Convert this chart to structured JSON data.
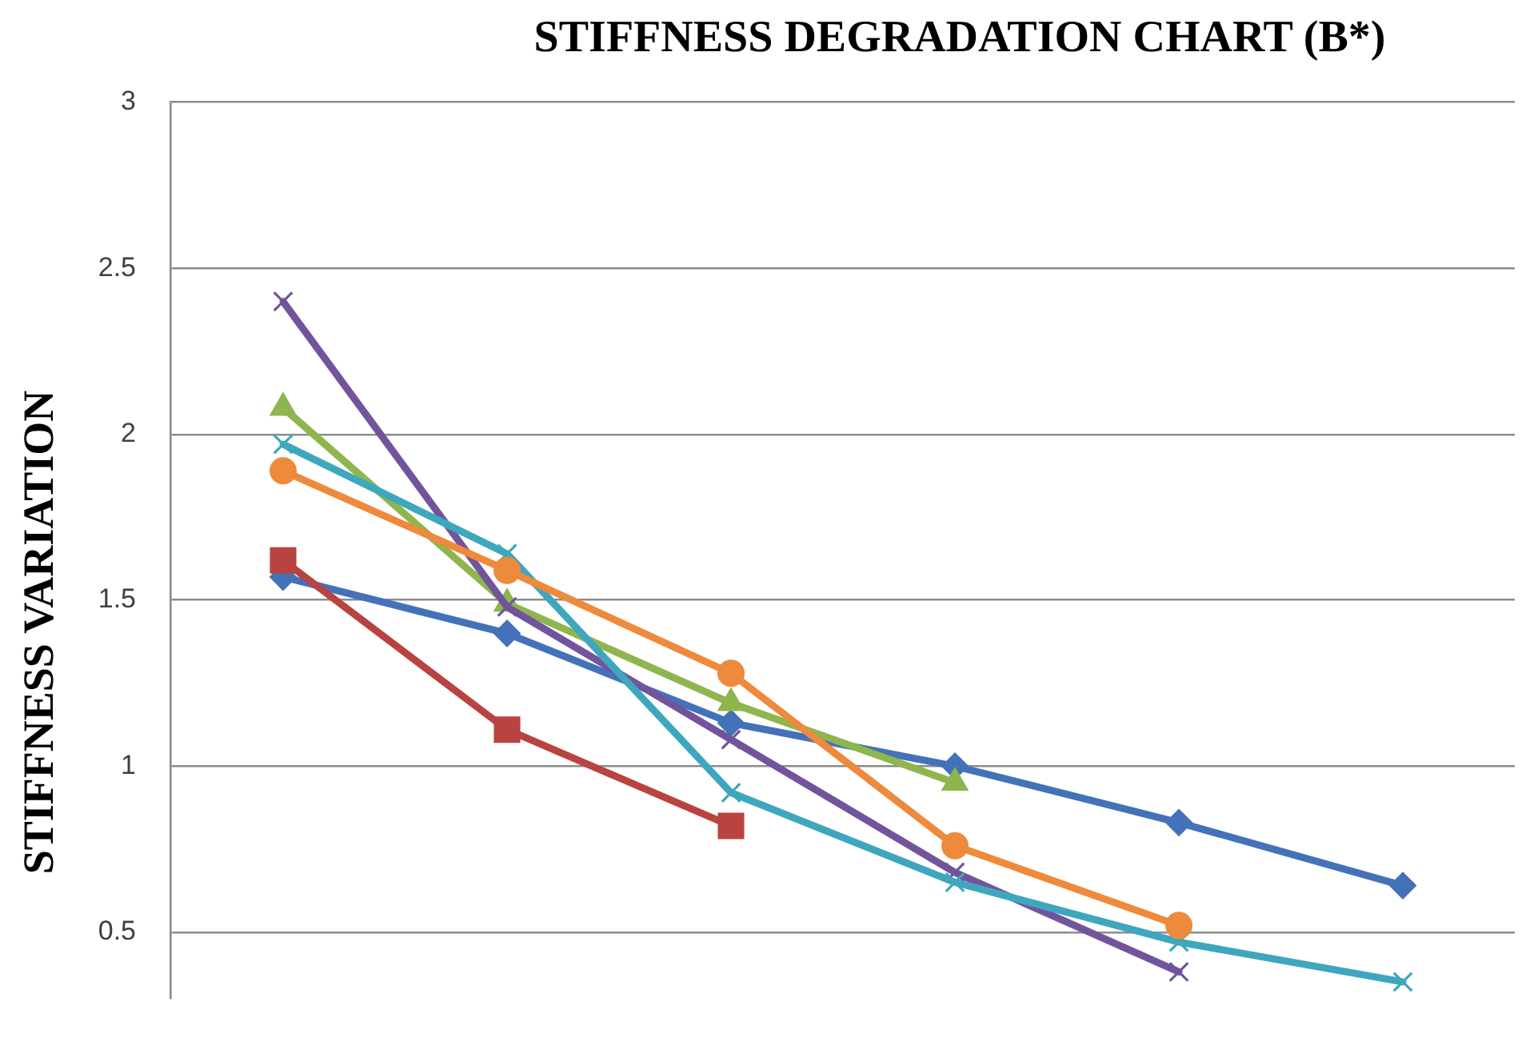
{
  "chart_data": {
    "type": "line",
    "title": "STIFFNESS DEGRADATION CHART (B*)",
    "ylabel": "STIFFNESS VARIATION",
    "categories": [
      null,
      null,
      null,
      null,
      null,
      null
    ],
    "series": [
      {
        "color": "#4472b8",
        "marker": "diamond",
        "values": [
          1.57,
          1.4,
          1.13,
          1.0,
          0.83,
          0.64
        ]
      },
      {
        "color": "#b94340",
        "marker": "square",
        "values": [
          1.62,
          1.11,
          0.82,
          null,
          null,
          null
        ]
      },
      {
        "color": "#8fb54e",
        "marker": "triangle",
        "values": [
          2.08,
          1.49,
          1.19,
          0.95,
          null,
          null
        ]
      },
      {
        "color": "#72549c",
        "marker": "cross",
        "values": [
          2.4,
          1.48,
          1.08,
          0.68,
          0.38,
          null
        ]
      },
      {
        "color": "#3ea7bd",
        "marker": "cross",
        "values": [
          1.97,
          1.64,
          0.92,
          0.65,
          0.47,
          0.35
        ]
      },
      {
        "color": "#ee8a3c",
        "marker": "circle",
        "values": [
          1.89,
          1.59,
          1.28,
          0.76,
          0.52,
          null
        ]
      }
    ],
    "ylim": [
      0.3,
      3
    ],
    "yticks": [
      0.5,
      1,
      1.5,
      2,
      2.5,
      3
    ],
    "grid": "y",
    "legend": false
  }
}
